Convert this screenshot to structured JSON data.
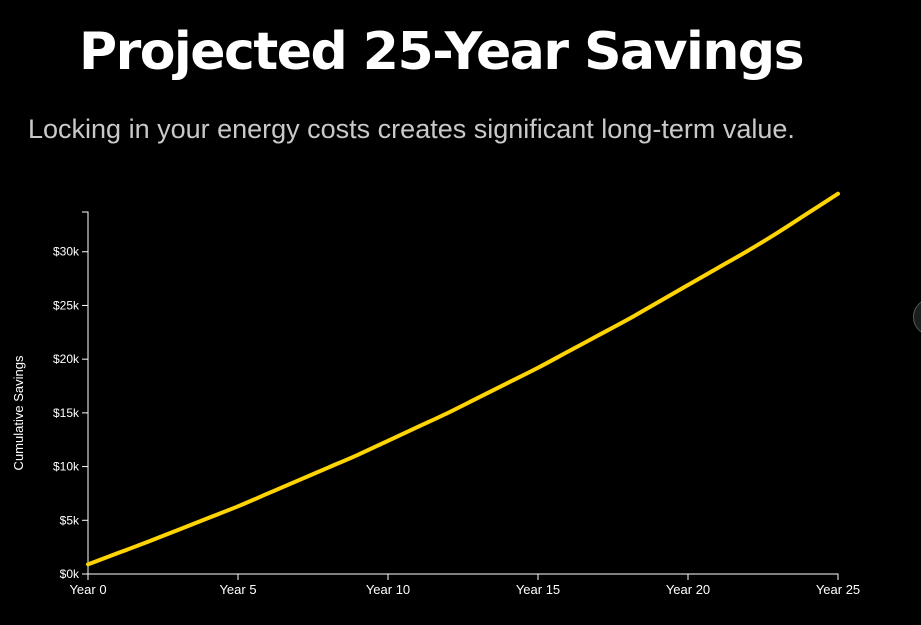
{
  "header": {
    "title": "Projected 25-Year Savings",
    "subtitle": "Locking in your energy costs creates significant long-term value."
  },
  "colors": {
    "background": "#000000",
    "line": "#FFD400",
    "axis": "#ffffff"
  },
  "chart_data": {
    "type": "line",
    "title": "",
    "xlabel": "",
    "ylabel": "Cumulative Savings",
    "x": [
      0,
      5,
      10,
      15,
      20,
      25
    ],
    "x_tick_labels": [
      "Year 0",
      "Year 5",
      "Year 10",
      "Year 15",
      "Year 20",
      "Year 25"
    ],
    "y_ticks": [
      0,
      5000,
      10000,
      15000,
      20000,
      25000,
      30000
    ],
    "y_tick_labels": [
      "$0k",
      "$5k",
      "$10k",
      "$15k",
      "$20k",
      "$25k",
      "$30k"
    ],
    "xlim": [
      0,
      25
    ],
    "ylim": [
      0,
      33700
    ],
    "grid": false,
    "legend": "none",
    "series": [
      {
        "x": [
          0,
          1,
          2,
          3,
          4,
          5,
          6,
          7,
          8,
          9,
          10,
          11,
          12,
          13,
          14,
          15,
          16,
          17,
          18,
          19,
          20,
          21,
          22,
          23,
          24,
          25
        ],
        "values": [
          900,
          1950,
          3000,
          4100,
          5200,
          6300,
          7500,
          8700,
          9900,
          11100,
          12400,
          13700,
          15000,
          16400,
          17800,
          19200,
          20700,
          22200,
          23700,
          25300,
          26900,
          28500,
          30100,
          31800,
          33600,
          35400
        ]
      }
    ]
  }
}
